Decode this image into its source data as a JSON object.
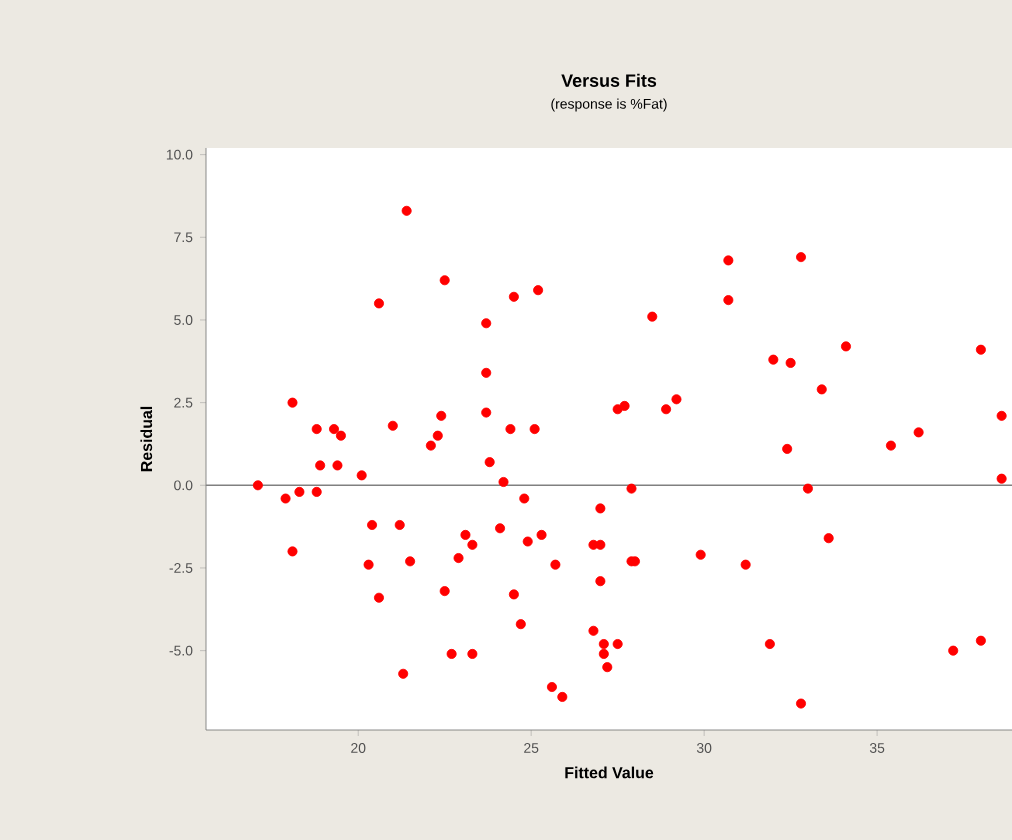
{
  "chart_data": {
    "type": "scatter",
    "title": "Versus Fits",
    "subtitle": "(response is %Fat)",
    "xlabel": "Fitted Value",
    "ylabel": "Residual",
    "x": [
      21.4,
      22.5,
      20.6,
      24.5,
      25.2,
      23.7,
      23.7,
      18.1,
      23.7,
      18.8,
      19.3,
      19.5,
      21.0,
      22.4,
      22.3,
      22.1,
      24.4,
      25.1,
      18.9,
      19.4,
      20.1,
      23.8,
      24.2,
      17.1,
      17.9,
      18.3,
      18.8,
      24.8,
      18.1,
      20.4,
      21.2,
      20.3,
      21.5,
      23.1,
      23.3,
      22.9,
      24.1,
      24.9,
      25.3,
      25.7,
      20.6,
      22.5,
      24.5,
      24.7,
      22.7,
      23.3,
      21.3,
      25.6,
      25.9,
      30.7,
      32.8,
      30.7,
      28.5,
      32.0,
      32.5,
      34.1,
      38.0,
      33.4,
      27.5,
      27.7,
      28.9,
      29.2,
      38.6,
      32.4,
      35.4,
      36.2,
      38.6,
      27.9,
      33.0,
      27.0,
      33.6,
      26.8,
      27.0,
      27.9,
      28.0,
      29.9,
      31.2,
      27.0,
      26.8,
      27.1,
      27.5,
      27.1,
      27.2,
      31.9,
      37.2,
      38.0,
      32.8
    ],
    "values": [
      8.3,
      6.2,
      5.5,
      5.7,
      5.9,
      4.9,
      3.4,
      2.5,
      2.2,
      1.7,
      1.7,
      1.5,
      1.8,
      2.1,
      1.5,
      1.2,
      1.7,
      1.7,
      0.6,
      0.6,
      0.3,
      0.7,
      0.1,
      0.0,
      -0.4,
      -0.2,
      -0.2,
      -0.4,
      -2.0,
      -1.2,
      -1.2,
      -2.4,
      -2.3,
      -1.5,
      -1.8,
      -2.2,
      -1.3,
      -1.7,
      -1.5,
      -2.4,
      -3.4,
      -3.2,
      -3.3,
      -4.2,
      -5.1,
      -5.1,
      -5.7,
      -6.1,
      -6.4,
      6.8,
      6.9,
      5.6,
      5.1,
      3.8,
      3.7,
      4.2,
      4.1,
      2.9,
      2.3,
      2.4,
      2.3,
      2.6,
      2.1,
      1.1,
      1.2,
      1.6,
      0.2,
      -0.1,
      -0.1,
      -0.7,
      -1.6,
      -1.8,
      -1.8,
      -2.3,
      -2.3,
      -2.1,
      -2.4,
      -2.9,
      -4.4,
      -4.8,
      -4.8,
      -5.1,
      -5.5,
      -4.8,
      -5.0,
      -4.7,
      -6.6
    ],
    "color": "#ff0000",
    "marker": "circle",
    "xlim": [
      15.6,
      38.9
    ],
    "ylim": [
      -7.4,
      10.2
    ],
    "xticks": [
      20,
      25,
      30,
      35
    ],
    "yticks": [
      {
        "value": -5,
        "label": "-5.0"
      },
      {
        "value": -2.5,
        "label": "-2.5"
      },
      {
        "value": 0,
        "label": "0.0"
      },
      {
        "value": 2.5,
        "label": "2.5"
      },
      {
        "value": 5,
        "label": "5.0"
      },
      {
        "value": 7.5,
        "label": "7.5"
      },
      {
        "value": 10,
        "label": "10.0"
      }
    ],
    "ref_lines": [
      {
        "axis": "y",
        "value": 0,
        "color": "#808080"
      }
    ]
  }
}
